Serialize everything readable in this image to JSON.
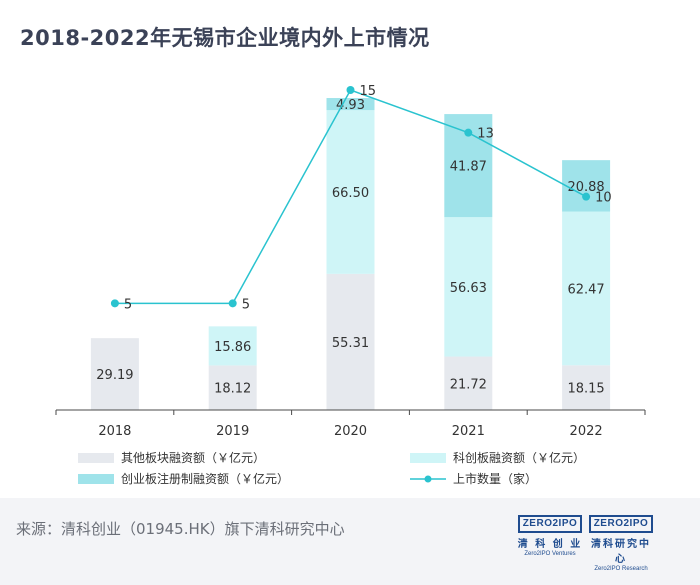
{
  "title": "2018-2022年无锡市企业境内外上市情况",
  "source": "来源：清科创业（01945.HK）旗下清科研究中心",
  "logos": [
    {
      "mark": "ZERO2IPO",
      "cn": "清 科 创 业",
      "en": "Zero2IPO Ventures"
    },
    {
      "mark": "ZERO2IPO",
      "cn": "清科研究中心",
      "en": "Zero2IPO Research"
    }
  ],
  "colors": {
    "other": "#e6e9ee",
    "star": "#cff5f7",
    "chinext": "#9fe3ea",
    "line": "#2ac3cf"
  },
  "chart_data": {
    "type": "bar",
    "stacked": true,
    "categories": [
      "2018",
      "2019",
      "2020",
      "2021",
      "2022"
    ],
    "series": [
      {
        "name": "其他板块融资额（￥亿元）",
        "key": "other",
        "values": [
          29.19,
          18.12,
          55.31,
          21.72,
          18.15
        ]
      },
      {
        "name": "科创板融资额（￥亿元）",
        "key": "star",
        "values": [
          null,
          15.86,
          66.5,
          56.63,
          62.47
        ]
      },
      {
        "name": "创业板注册制融资额（￥亿元）",
        "key": "chinext",
        "values": [
          null,
          null,
          4.93,
          41.87,
          20.88
        ]
      }
    ],
    "line": {
      "name": "上市数量（家）",
      "values": [
        5,
        5,
        15,
        13,
        10
      ]
    },
    "value_labels": {
      "other": [
        "29.19",
        "18.12",
        "55.31",
        "21.72",
        "18.15"
      ],
      "star": [
        "",
        "15.86",
        "66.50",
        "56.63",
        "62.47"
      ],
      "chinext": [
        "",
        "",
        "4.93",
        "41.87",
        "20.88"
      ],
      "line": [
        "5",
        "5",
        "15",
        "13",
        "10"
      ]
    },
    "ylim": [
      0,
      130
    ],
    "y2lim": [
      0,
      15
    ],
    "legend_position": "bottom"
  }
}
